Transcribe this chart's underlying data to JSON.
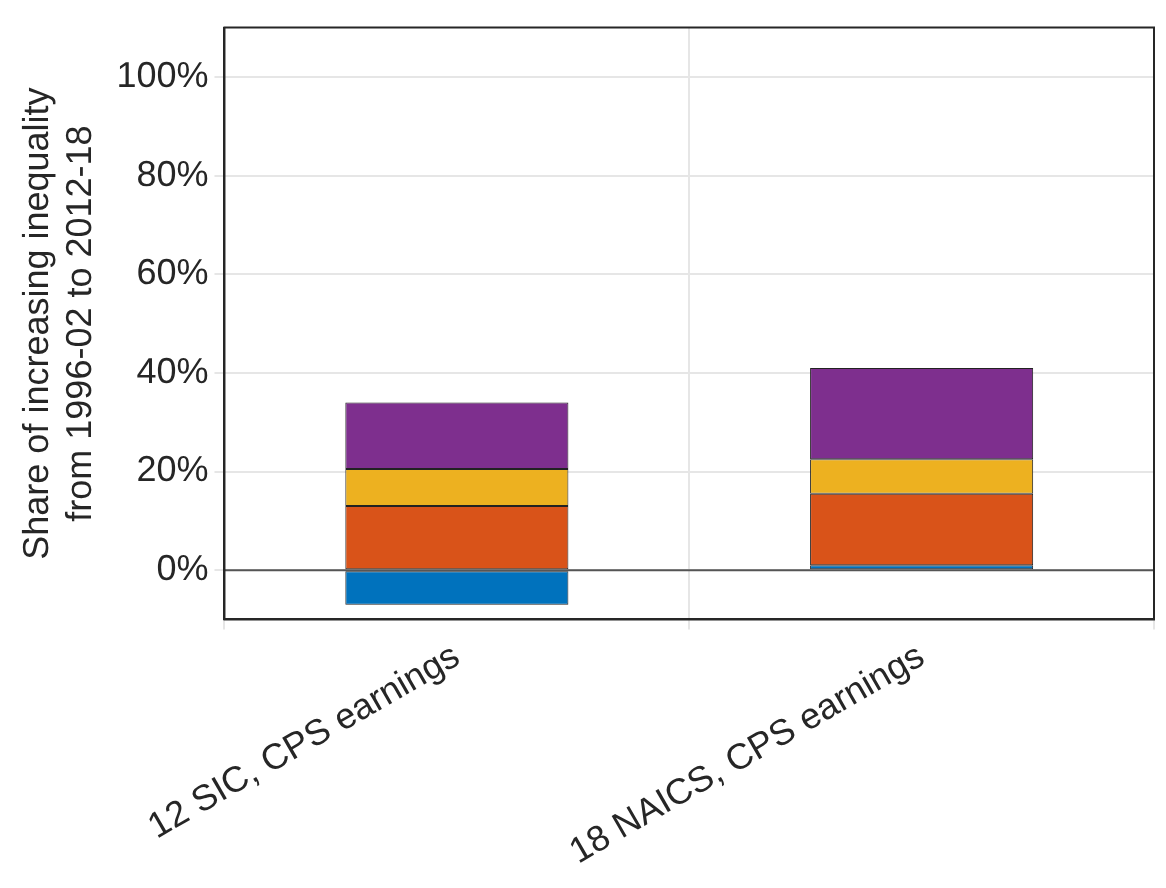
{
  "chart_data": {
    "type": "bar",
    "stacked": true,
    "ylabel": "Share of increasing inequality\nfrom 1996-02 to 2012-18",
    "categories": [
      "12 SIC, CPS earnings",
      "18 NAICS, CPS earnings"
    ],
    "series": [
      {
        "color": "#0072bd",
        "values": [
          -7,
          1
        ]
      },
      {
        "color": "#d95319",
        "values": [
          13,
          14.5
        ]
      },
      {
        "color": "#edb120",
        "values": [
          7.5,
          7
        ]
      },
      {
        "color": "#7e2f8e",
        "values": [
          13.5,
          18.5
        ]
      }
    ],
    "ylim": [
      -10,
      110
    ],
    "yticks": [
      {
        "value": 0,
        "label": "0%"
      },
      {
        "value": 20,
        "label": "20%"
      },
      {
        "value": 40,
        "label": "40%"
      },
      {
        "value": 60,
        "label": "60%"
      },
      {
        "value": 80,
        "label": "80%"
      },
      {
        "value": 100,
        "label": "100%"
      }
    ],
    "ref_lines": [
      {
        "axis": "y",
        "value": 0,
        "color": "#555555"
      }
    ],
    "grid": true,
    "legend": false
  }
}
